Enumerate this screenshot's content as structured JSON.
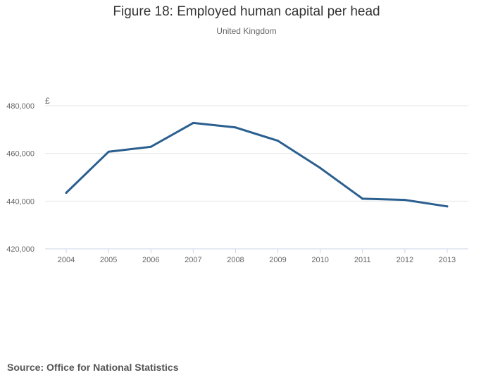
{
  "chart_data": {
    "type": "line",
    "title": "Figure 18: Employed human capital per head",
    "subtitle": "United Kingdom",
    "ylabel": "£",
    "x": [
      "2004",
      "2005",
      "2006",
      "2007",
      "2008",
      "2009",
      "2010",
      "2011",
      "2012",
      "2013"
    ],
    "series": [
      {
        "values": [
          443500,
          460700,
          462800,
          472800,
          470900,
          465300,
          453900,
          441000,
          440500,
          437800
        ]
      }
    ],
    "ylim": [
      420000,
      480000
    ],
    "yticks": [
      420000,
      440000,
      460000,
      480000
    ],
    "ytick_labels": [
      "420,000",
      "440,000",
      "460,000",
      "480,000"
    ],
    "grid": true,
    "legend": "none",
    "colors": {
      "line": "#2a5f8f",
      "grid": "#e6e6e6",
      "axis": "#ccd6eb"
    },
    "source": "Source: Office for National Statistics"
  }
}
